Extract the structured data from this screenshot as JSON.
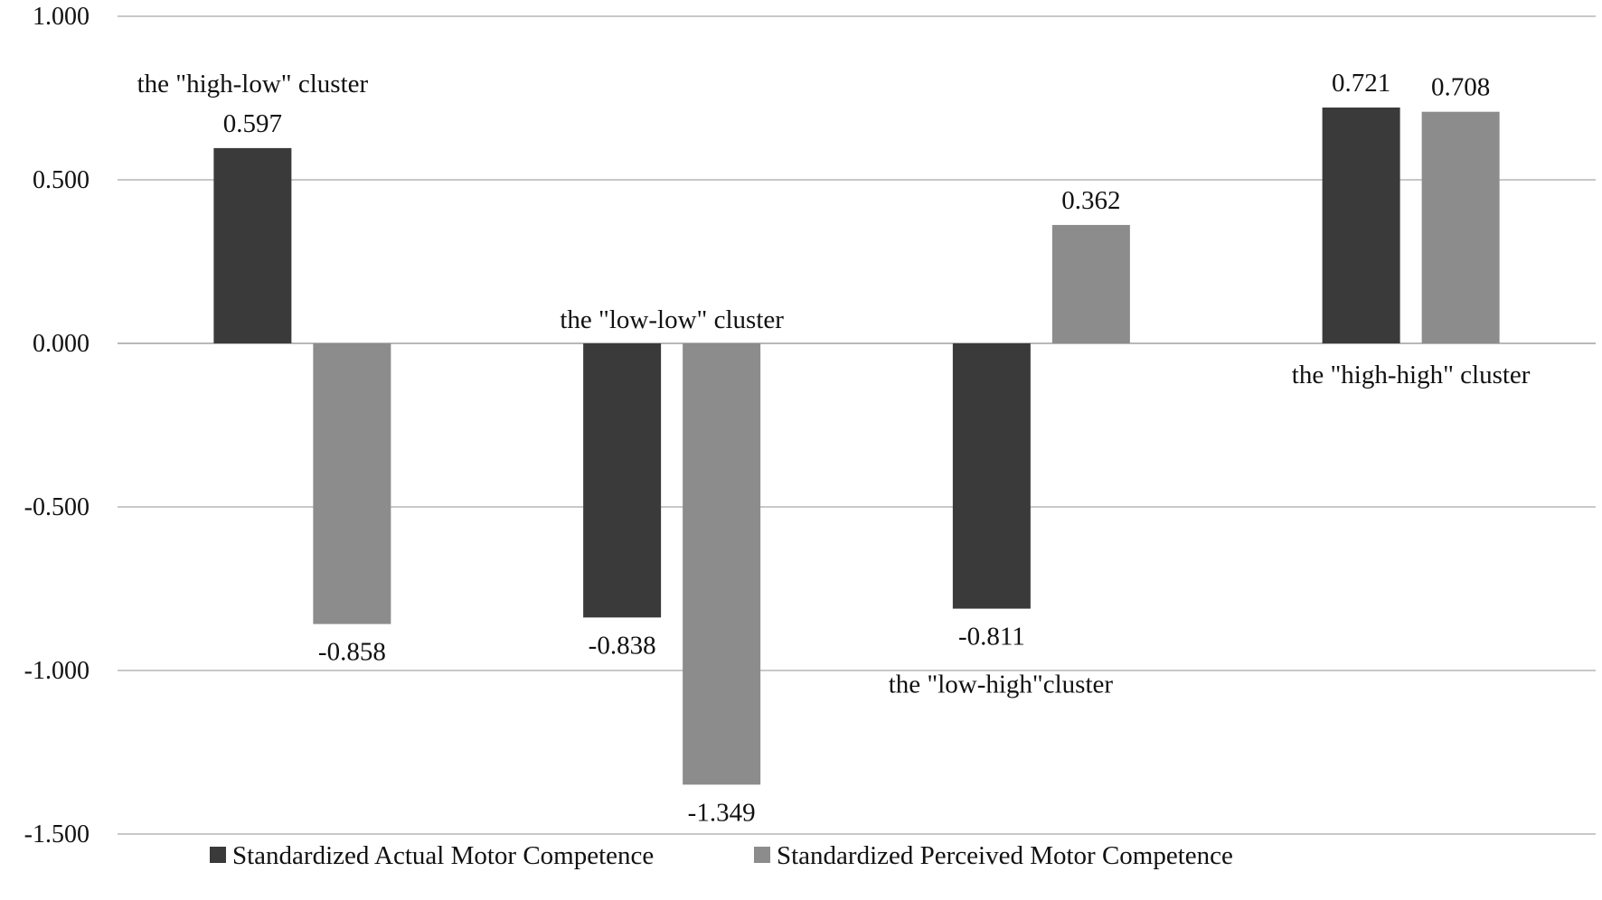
{
  "chart_data": {
    "type": "bar",
    "title": "",
    "xlabel": "",
    "ylabel": "",
    "ylim": [
      -1.5,
      1.0
    ],
    "yticks": [
      1.0,
      0.5,
      0.0,
      -0.5,
      -1.0,
      -1.5
    ],
    "ytick_labels": [
      "1.000",
      "0.500",
      "0.000",
      "-0.500",
      "-1.000",
      "-1.500"
    ],
    "grid": true,
    "legend_position": "bottom",
    "categories": [
      "the \"high-low\" cluster",
      "the \"low-low\" cluster",
      "the \"low-high\"cluster",
      "the \"high-high\" cluster"
    ],
    "series": [
      {
        "name": "Standardized Actual Motor Competence",
        "color": "#3a3a3a",
        "values": [
          0.597,
          -0.838,
          -0.811,
          0.721
        ],
        "labels": [
          "0.597",
          "-0.838",
          "-0.811",
          "0.721"
        ]
      },
      {
        "name": "Standardized Perceived Motor Competence",
        "color": "#8c8c8c",
        "values": [
          -0.858,
          -1.349,
          0.362,
          0.708
        ],
        "labels": [
          "-0.858",
          "-1.349",
          "0.362",
          "0.708"
        ]
      }
    ]
  }
}
